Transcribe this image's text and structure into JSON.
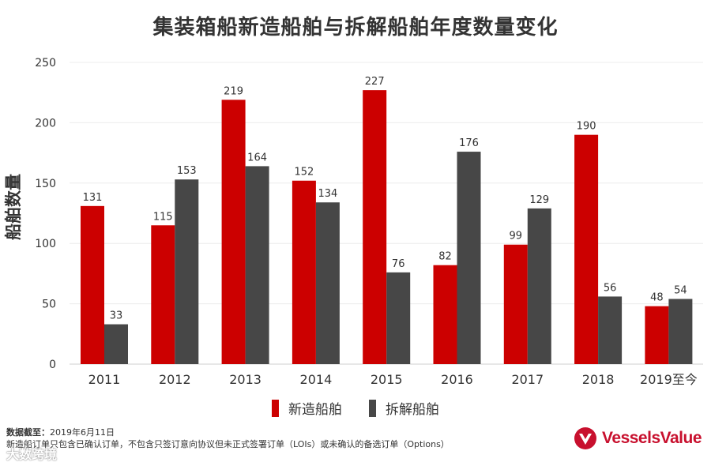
{
  "chart_data": {
    "type": "bar",
    "title": "集装箱船新造船舶与拆解船舶年度数量变化",
    "xlabel": "",
    "ylabel": "船舶数量",
    "ylim": [
      0,
      250
    ],
    "yticks": [
      "0",
      "50",
      "100",
      "150",
      "200",
      "250"
    ],
    "categories": [
      "2011",
      "2012",
      "2013",
      "2014",
      "2015",
      "2016",
      "2017",
      "2018",
      "2019至今"
    ],
    "series": [
      {
        "name": "新造船舶",
        "color": "#cc0000",
        "values": [
          131,
          115,
          219,
          152,
          227,
          82,
          99,
          190,
          48
        ]
      },
      {
        "name": "拆解船舶",
        "color": "#474747",
        "values": [
          33,
          153,
          164,
          134,
          76,
          176,
          129,
          56,
          54
        ]
      }
    ],
    "grid": true,
    "legend": "bottom-center"
  },
  "footer": {
    "date_label": "数据截至：",
    "date_value": "2019年6月11日",
    "note": "新造船订单只包含已确认订单，不包含只签订意向协议但未正式签署订单（LOIs）或未确认的备选订单（Options）"
  },
  "watermark": "大数跨境",
  "logo": {
    "text": "VesselsValue",
    "color": "#c8102e"
  }
}
